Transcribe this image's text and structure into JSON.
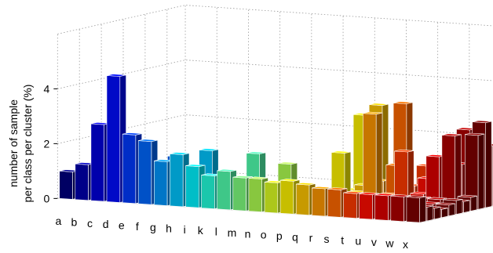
{
  "chart_data": {
    "type": "bar3d",
    "ylabel_lines": [
      "number of sample",
      "per class per cluster (%)"
    ],
    "zlim": [
      0,
      6
    ],
    "z_ticks": [
      {
        "value": 0,
        "label": "0"
      },
      {
        "value": 2,
        "label": "2"
      },
      {
        "value": 4,
        "label": "4"
      }
    ],
    "categories": [
      "a",
      "b",
      "c",
      "d",
      "e",
      "f",
      "g",
      "h",
      "i",
      "k",
      "l",
      "m",
      "n",
      "o",
      "p",
      "q",
      "r",
      "s",
      "t",
      "u",
      "v",
      "w",
      "x"
    ],
    "series": [
      {
        "values": [
          1.0,
          1.3,
          2.8,
          4.6,
          2.5,
          2.3,
          1.6,
          1.9,
          1.5,
          1.2,
          1.4,
          1.2,
          1.2,
          1.1,
          1.2,
          1.1,
          1.0,
          1.0,
          0.9,
          0.9,
          0.9,
          0.9,
          0.9
        ]
      },
      {
        "values": [
          0.6,
          1.0,
          1.5,
          1.3,
          1.2,
          1.0,
          1.0,
          0.9,
          0.8,
          0.7,
          0.7,
          0.7,
          0.6,
          0.6,
          0.6,
          0.6,
          0.5,
          0.5,
          0.5,
          0.5,
          0.5,
          0.5,
          0.5
        ]
      },
      {
        "values": [
          0.4,
          0.5,
          0.6,
          0.5,
          0.5,
          0.5,
          0.4,
          0.4,
          0.4,
          0.4,
          0.4,
          0.4,
          0.4,
          0.4,
          0.4,
          0.4,
          0.4,
          0.4,
          0.4,
          0.4,
          0.4,
          0.4,
          0.4
        ]
      },
      {
        "values": [
          0.3,
          0.3,
          0.3,
          0.3,
          0.3,
          0.3,
          0.3,
          0.3,
          0.3,
          0.3,
          0.3,
          0.3,
          0.3,
          0.3,
          0.3,
          0.3,
          0.3,
          0.3,
          0.3,
          0.3,
          0.3,
          0.3,
          0.3
        ]
      },
      {
        "values": [
          0.2,
          0.2,
          0.2,
          0.3,
          1.0,
          1.5,
          1.1,
          1.8,
          0.8,
          0.7,
          1.8,
          0.6,
          1.5,
          0.6,
          0.5,
          0.4,
          0.4,
          0.4,
          0.4,
          0.4,
          0.4,
          0.4,
          0.4
        ]
      },
      {
        "values": [
          0.2,
          0.2,
          0.2,
          0.2,
          0.3,
          0.6,
          0.6,
          0.5,
          0.6,
          0.6,
          0.6,
          0.5,
          0.5,
          0.5,
          0.5,
          0.5,
          0.5,
          0.5,
          0.5,
          0.5,
          0.5,
          0.5,
          0.5
        ]
      },
      {
        "values": [
          0.2,
          0.2,
          0.2,
          0.2,
          0.2,
          0.3,
          0.4,
          0.3,
          0.4,
          0.4,
          0.4,
          0.4,
          0.4,
          0.4,
          0.4,
          0.4,
          0.4,
          0.4,
          0.4,
          0.4,
          0.4,
          0.4,
          0.4
        ]
      },
      {
        "values": [
          0.2,
          0.2,
          0.2,
          0.2,
          0.2,
          0.2,
          0.2,
          0.3,
          0.3,
          0.3,
          0.3,
          0.3,
          0.3,
          0.3,
          1.8,
          0.4,
          3.3,
          0.4,
          2.0,
          0.5,
          1.9,
          2.7,
          0.5
        ]
      },
      {
        "values": [
          0.2,
          0.2,
          0.2,
          0.2,
          0.2,
          0.2,
          0.2,
          0.2,
          0.2,
          0.2,
          0.2,
          0.2,
          0.2,
          0.3,
          0.4,
          0.6,
          0.8,
          1.4,
          0.7,
          1.0,
          1.2,
          1.6,
          2.7
        ]
      },
      {
        "values": [
          0.2,
          0.2,
          0.2,
          0.2,
          0.2,
          0.2,
          0.2,
          0.2,
          0.2,
          0.2,
          0.2,
          0.2,
          0.2,
          0.2,
          0.3,
          0.3,
          0.5,
          3.6,
          0.5,
          0.6,
          1.1,
          2.8,
          3.1
        ]
      },
      {
        "values": [
          0.2,
          0.2,
          0.2,
          0.2,
          0.2,
          0.2,
          0.2,
          0.2,
          0.2,
          0.2,
          0.2,
          0.2,
          0.2,
          0.2,
          3.0,
          3.4,
          0.4,
          0.5,
          1.3,
          0.6,
          0.8,
          0.9,
          2.2
        ]
      }
    ]
  }
}
